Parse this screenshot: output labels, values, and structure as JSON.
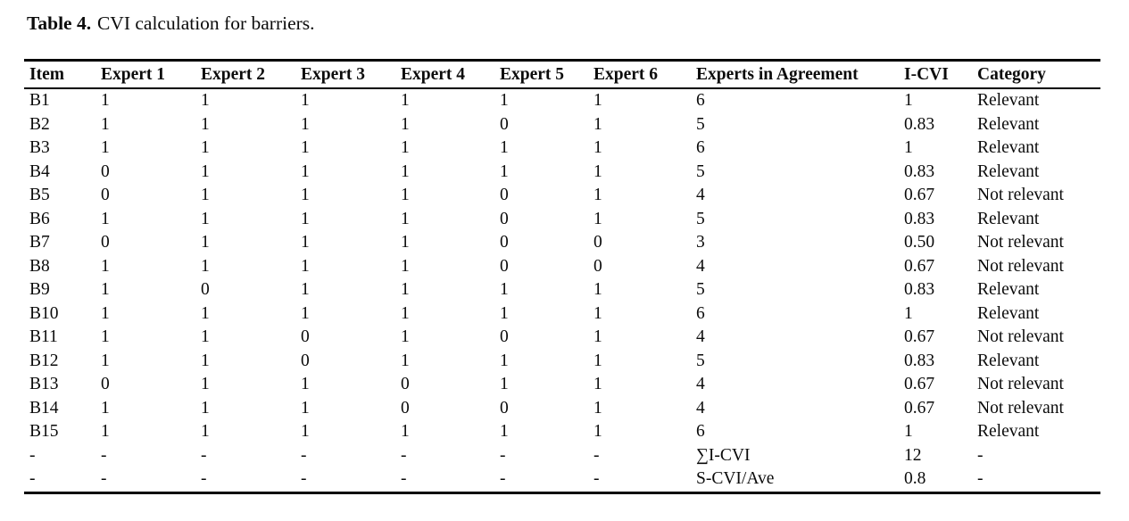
{
  "caption": {
    "label": "Table 4.",
    "text": "CVI calculation for barriers."
  },
  "table": {
    "columns": [
      "Item",
      "Expert 1",
      "Expert 2",
      "Expert 3",
      "Expert 4",
      "Expert 5",
      "Expert 6",
      "Experts in Agreement",
      "I-CVI",
      "Category"
    ],
    "rows": [
      [
        "B1",
        "1",
        "1",
        "1",
        "1",
        "1",
        "1",
        "6",
        "1",
        "Relevant"
      ],
      [
        "B2",
        "1",
        "1",
        "1",
        "1",
        "0",
        "1",
        "5",
        "0.83",
        "Relevant"
      ],
      [
        "B3",
        "1",
        "1",
        "1",
        "1",
        "1",
        "1",
        "6",
        "1",
        "Relevant"
      ],
      [
        "B4",
        "0",
        "1",
        "1",
        "1",
        "1",
        "1",
        "5",
        "0.83",
        "Relevant"
      ],
      [
        "B5",
        "0",
        "1",
        "1",
        "1",
        "0",
        "1",
        "4",
        "0.67",
        "Not relevant"
      ],
      [
        "B6",
        "1",
        "1",
        "1",
        "1",
        "0",
        "1",
        "5",
        "0.83",
        "Relevant"
      ],
      [
        "B7",
        "0",
        "1",
        "1",
        "1",
        "0",
        "0",
        "3",
        "0.50",
        "Not relevant"
      ],
      [
        "B8",
        "1",
        "1",
        "1",
        "1",
        "0",
        "0",
        "4",
        "0.67",
        "Not relevant"
      ],
      [
        "B9",
        "1",
        "0",
        "1",
        "1",
        "1",
        "1",
        "5",
        "0.83",
        "Relevant"
      ],
      [
        "B10",
        "1",
        "1",
        "1",
        "1",
        "1",
        "1",
        "6",
        "1",
        "Relevant"
      ],
      [
        "B11",
        "1",
        "1",
        "0",
        "1",
        "0",
        "1",
        "4",
        "0.67",
        "Not relevant"
      ],
      [
        "B12",
        "1",
        "1",
        "0",
        "1",
        "1",
        "1",
        "5",
        "0.83",
        "Relevant"
      ],
      [
        "B13",
        "0",
        "1",
        "1",
        "0",
        "1",
        "1",
        "4",
        "0.67",
        "Not relevant"
      ],
      [
        "B14",
        "1",
        "1",
        "1",
        "0",
        "0",
        "1",
        "4",
        "0.67",
        "Not relevant"
      ],
      [
        "B15",
        "1",
        "1",
        "1",
        "1",
        "1",
        "1",
        "6",
        "1",
        "Relevant"
      ],
      [
        "-",
        "-",
        "-",
        "-",
        "-",
        "-",
        "-",
        "∑I-CVI",
        "12",
        "-"
      ],
      [
        "-",
        "-",
        "-",
        "-",
        "-",
        "-",
        "-",
        "S-CVI/Ave",
        "0.8",
        "-"
      ]
    ],
    "summary": {
      "sum_icvi_label": "∑I-CVI",
      "sum_icvi_value": "12",
      "scvi_ave_label": "S-CVI/Ave",
      "scvi_ave_value": "0.8"
    }
  }
}
